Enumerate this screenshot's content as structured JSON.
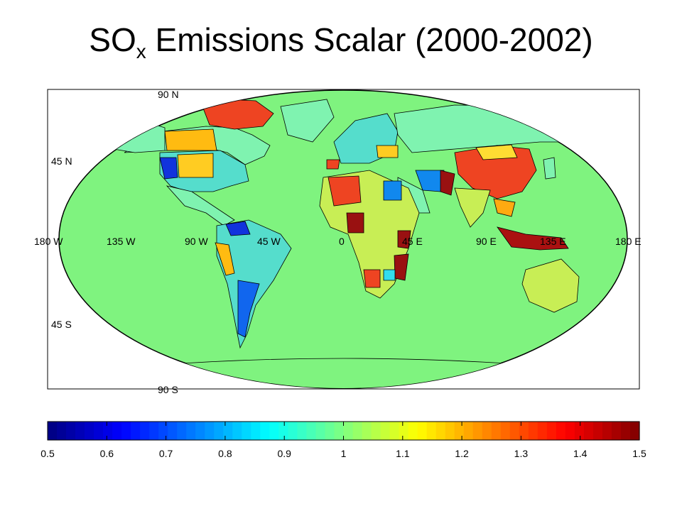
{
  "title": {
    "main": "SO",
    "sub": "x",
    "rest": " Emissions Scalar (2000-2002)"
  },
  "map": {
    "ocean_color": "#7ff37f",
    "lat_labels": [
      "90 N",
      "45 N",
      "45 S",
      "90 S"
    ],
    "lon_labels": [
      "180 W",
      "135 W",
      "90 W",
      "45 W",
      "0",
      "45 E",
      "90 E",
      "135 E",
      "180 E"
    ]
  },
  "colorbar": {
    "min": 0.5,
    "max": 1.5,
    "ticks": [
      "0.5",
      "0.6",
      "0.7",
      "0.8",
      "0.9",
      "1",
      "1.1",
      "1.2",
      "1.3",
      "1.4",
      "1.5"
    ],
    "colormap": "jet"
  }
}
